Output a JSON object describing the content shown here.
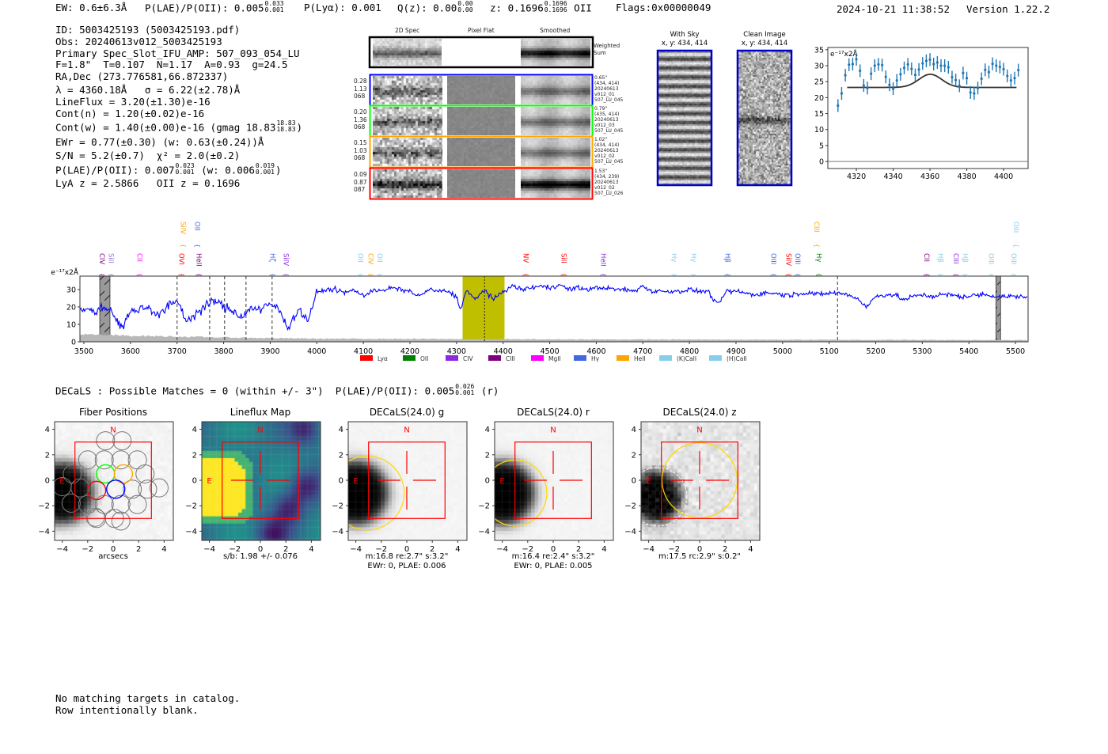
{
  "header": {
    "ew": "EW: 0.6±6.3Å",
    "plae": "P(LAE)/P(OII): 0.005",
    "plae_hi": "0.033",
    "plae_lo": "0.001",
    "plya": "P(Lyα): 0.001",
    "qz": "Q(z): 0.00",
    "qz_hi": "0.00",
    "qz_lo": "0.00",
    "z": "z: 0.1696",
    "z_hi": "0.1696",
    "z_lo": "0.1696",
    "z_line": "OII",
    "flags": "Flags:0x00000049",
    "datetime": "2024-10-21 11:38:52",
    "version": "Version 1.22.2"
  },
  "info": {
    "id": "ID: 5003425193 (5003425193.pdf)",
    "obs": "Obs: 20240613v012_5003425193",
    "primary": "Primary Spec_Slot_IFU_AMP: 507_093_054_LU",
    "params": "F=1.8\"  T=0.107  N=1.17  A=0.93  g=24.5",
    "radec": "RA,Dec (273.776581,66.872337)",
    "lambda": "λ = 4360.18Å   σ = 6.22(±2.78)Å",
    "lineflux": "LineFlux = 3.20(±1.30)e-16",
    "cont_n": "Cont(n) = 1.20(±0.02)e-16",
    "cont_w": "Cont(w) = 1.40(±0.00)e-16 (gmag 18.83",
    "cont_w_hi": "18.83",
    "cont_w_lo": "18.83",
    "cont_w_end": ")",
    "ewr": "EWr = 0.77(±0.30) (w: 0.63(±0.24))Å",
    "sn": "S/N = 5.2(±0.7)  χ² = 2.0(±0.2)",
    "plae": "P(LAE)/P(OII): 0.007",
    "plae_hi": "0.023",
    "plae_lo": "0.001",
    "plae_w": " (w: 0.006",
    "plae_w_hi": "0.019",
    "plae_w_lo": "0.001",
    "plae_w_end": ")",
    "z": "LyA z = 2.5866   OII z = 0.1696"
  },
  "spec2d": {
    "headers": [
      "2D Spec",
      "Pixel Flat",
      "Smoothed"
    ],
    "weighted_label": "Weighted\nSum",
    "rows": [
      {
        "color": "#0000ff",
        "left": "0.28\n1.13\n068",
        "right": "0.65\"\n(434, 414)\n20240613\nv012_01\n507_LU_045"
      },
      {
        "color": "#00ff00",
        "left": "0.20\n1.36\n068",
        "right": "0.79\"\n(435, 414)\n20240613\nv012_03\n507_LU_045"
      },
      {
        "color": "#ffa500",
        "left": "0.15\n1.03\n068",
        "right": "1.02\"\n(434, 414)\n20240613\nv012_02\n507_LU_045"
      },
      {
        "color": "#ff0000",
        "left": "0.09\n0.87\n087",
        "right": "1.53\"\n(434, 239)\n20240613\nv012_02\n507_LU_026"
      }
    ]
  },
  "stamps": {
    "with_sky": {
      "title": "With Sky",
      "coords": "x, y: 434, 414"
    },
    "clean": {
      "title": "Clean Image",
      "coords": "x, y: 434, 414"
    }
  },
  "colors": {
    "spectrum": "#0000ff",
    "fit_point": "#1f77b4",
    "highlight": "#bfbf00",
    "box": "#ff0000",
    "aperture": "#ffd700"
  },
  "chart_data": [
    {
      "type": "scatter",
      "name": "line-zoom",
      "ylabel_unit": "e⁻¹⁷x2Å",
      "xlim": [
        4304.5,
        4413.3
      ],
      "ylim": [
        -2.2,
        35.7
      ],
      "xticks": [
        4320,
        4340,
        4360,
        4380,
        4400
      ],
      "yticks": [
        0,
        5,
        10,
        15,
        20,
        25,
        30,
        35
      ],
      "x": [
        4310,
        4312,
        4314,
        4316,
        4318,
        4320,
        4322,
        4324,
        4326,
        4328,
        4330,
        4332,
        4334,
        4336,
        4338,
        4340,
        4342,
        4344,
        4346,
        4348,
        4350,
        4352,
        4354,
        4356,
        4358,
        4360,
        4362,
        4364,
        4366,
        4368,
        4370,
        4372,
        4374,
        4376,
        4378,
        4380,
        4382,
        4384,
        4386,
        4388,
        4390,
        4392,
        4394,
        4396,
        4398,
        4400,
        4402,
        4404,
        4406,
        4408
      ],
      "y": [
        17.5,
        21.3,
        27,
        30.3,
        30.5,
        32,
        28.4,
        23.8,
        23,
        27.5,
        30,
        30.4,
        30.2,
        26.5,
        24,
        22.8,
        25.4,
        27.3,
        29.3,
        30.4,
        29,
        27.1,
        28.8,
        30.7,
        31.5,
        31.9,
        30.5,
        31,
        30,
        30,
        29.5,
        26.4,
        25.5,
        23.7,
        27.7,
        26.1,
        21.6,
        21.3,
        23,
        25.9,
        28.7,
        28,
        30.6,
        30,
        29.6,
        28.9,
        26.8,
        25.4,
        26.1,
        28.6
      ],
      "yerr": 2.0,
      "fit": {
        "continuum": 23.2,
        "amplitude": 4.1,
        "center": 4360.18,
        "sigma": 6.22,
        "range": [
          4315,
          4407
        ]
      }
    },
    {
      "type": "line",
      "name": "full-spectrum",
      "ylabel_unit": "e⁻¹⁷x2Å",
      "xlim": [
        3491.5,
        5527
      ],
      "ylim": [
        0,
        37.7
      ],
      "xticks": [
        3500,
        3600,
        3700,
        3800,
        3900,
        4000,
        4100,
        4200,
        4300,
        4400,
        4500,
        4600,
        4700,
        4800,
        4900,
        5000,
        5100,
        5200,
        5300,
        5400,
        5500
      ],
      "yticks": [
        0,
        10,
        20,
        30
      ],
      "x": [
        3492,
        3500,
        3520,
        3540,
        3560,
        3580,
        3600,
        3620,
        3640,
        3660,
        3680,
        3700,
        3720,
        3740,
        3760,
        3780,
        3800,
        3820,
        3840,
        3860,
        3880,
        3900,
        3920,
        3940,
        3960,
        3980,
        4000,
        4020,
        4040,
        4060,
        4080,
        4100,
        4120,
        4140,
        4160,
        4180,
        4200,
        4220,
        4240,
        4260,
        4280,
        4300,
        4310,
        4320,
        4340,
        4360,
        4380,
        4400,
        4420,
        4440,
        4460,
        4480,
        4500,
        4520,
        4540,
        4560,
        4580,
        4600,
        4620,
        4640,
        4660,
        4680,
        4700,
        4720,
        4740,
        4760,
        4780,
        4800,
        4820,
        4840,
        4860,
        4880,
        4900,
        4920,
        4940,
        4960,
        4980,
        5000,
        5020,
        5040,
        5060,
        5080,
        5100,
        5120,
        5140,
        5160,
        5180,
        5200,
        5220,
        5240,
        5260,
        5280,
        5300,
        5320,
        5340,
        5360,
        5380,
        5400,
        5420,
        5440,
        5460,
        5480,
        5500,
        5527
      ],
      "y": [
        18,
        19,
        17,
        20,
        18,
        8,
        17,
        19,
        20,
        15,
        20,
        24,
        12,
        16,
        20,
        24,
        20,
        18,
        14,
        20,
        18,
        22,
        18,
        8,
        19,
        12,
        28,
        30,
        30,
        28,
        30,
        26,
        30,
        29,
        31,
        30,
        29,
        26,
        30,
        29,
        29,
        26,
        18,
        30,
        24,
        30,
        24,
        29,
        32,
        30,
        31,
        32,
        31,
        33,
        30,
        31,
        30,
        31,
        31,
        30,
        30,
        29,
        32,
        29,
        29,
        29,
        29,
        30,
        29,
        29,
        21,
        29,
        29,
        28,
        27,
        28,
        28,
        27,
        27,
        28,
        28,
        27,
        28,
        28,
        27,
        25,
        20,
        26,
        27,
        27,
        24,
        26,
        27,
        26,
        27,
        27,
        26,
        26,
        27,
        27,
        26,
        26,
        26,
        26
      ],
      "error": {
        "x": [
          3492,
          3600,
          3800,
          4000,
          4500,
          5000,
          5527
        ],
        "y": [
          4.2,
          3.5,
          2.5,
          1.8,
          1.4,
          1.2,
          1.0
        ]
      },
      "highlight_range": [
        4313,
        4403
      ],
      "center_line": 4360.18,
      "dashed_lines": [
        3700,
        3770,
        3802,
        3848,
        3904,
        5118
      ],
      "masked_ranges": [
        [
          3534,
          3556
        ],
        [
          5458,
          5468
        ]
      ],
      "line_labels": [
        {
          "label": "CIV",
          "w": 3540,
          "color": "#800080",
          "row": "low"
        },
        {
          "label": "SiII",
          "w": 3556,
          "color": "#9370db",
          "row": "low"
        },
        {
          "label": "CII",
          "w": 3621,
          "color": "#ff00ff",
          "row": "low"
        },
        {
          "label": "SiIV",
          "w": 3714,
          "color": "#ffa500",
          "row": "high"
        },
        {
          "label": "OII",
          "w": 3745,
          "color": "#4169e1",
          "row": "high"
        },
        {
          "label": "OVI",
          "w": 3711,
          "color": "#ff0000",
          "row": "low"
        },
        {
          "label": "HeII",
          "w": 3748,
          "color": "#800080",
          "row": "low"
        },
        {
          "label": "Hζ",
          "w": 3906,
          "color": "#4169e1",
          "row": "low"
        },
        {
          "label": "SiIV",
          "w": 3935,
          "color": "#8a2be2",
          "row": "low"
        },
        {
          "label": "OII",
          "w": 4095,
          "color": "#87ceeb",
          "row": "low"
        },
        {
          "label": "CIV",
          "w": 4117,
          "color": "#ffa500",
          "row": "low"
        },
        {
          "label": "OII",
          "w": 4132,
          "color": "#87ceeb",
          "row": "low"
        },
        {
          "label": "NV",
          "w": 4450,
          "color": "#ff0000",
          "row": "low"
        },
        {
          "label": "SiII",
          "w": 4531,
          "color": "#ff0000",
          "row": "low"
        },
        {
          "label": "HeII",
          "w": 4616,
          "color": "#8a2be2",
          "row": "low"
        },
        {
          "label": "Hγ",
          "w": 4768,
          "color": "#87ceeb",
          "row": "low"
        },
        {
          "label": "Hγ",
          "w": 4810,
          "color": "#87ceeb",
          "row": "low"
        },
        {
          "label": "Hβ",
          "w": 4883,
          "color": "#4169e1",
          "row": "low"
        },
        {
          "label": "OIII",
          "w": 4982,
          "color": "#4169e1",
          "row": "low"
        },
        {
          "label": "SiIV",
          "w": 5014,
          "color": "#ff0000",
          "row": "low"
        },
        {
          "label": "OIII",
          "w": 5031,
          "color": "#4169e1",
          "row": "low"
        },
        {
          "label": "CIII",
          "w": 5074,
          "color": "#ffa500",
          "row": "high"
        },
        {
          "label": "Hγ",
          "w": 5079,
          "color": "#008000",
          "row": "low"
        },
        {
          "label": "CII",
          "w": 5310,
          "color": "#800080",
          "row": "low"
        },
        {
          "label": "Hβ",
          "w": 5340,
          "color": "#87ceeb",
          "row": "low"
        },
        {
          "label": "CIII",
          "w": 5373,
          "color": "#8a2be2",
          "row": "low"
        },
        {
          "label": "Hβ",
          "w": 5390,
          "color": "#87ceeb",
          "row": "low"
        },
        {
          "label": "OIII",
          "w": 5449,
          "color": "#87ceeb",
          "row": "low"
        },
        {
          "label": "OIII",
          "w": 5497,
          "color": "#87ceeb",
          "row": "low"
        },
        {
          "label": "OIII",
          "w": 5502,
          "color": "#87ceeb",
          "row": "high"
        }
      ],
      "legend": [
        {
          "label": "Lyα",
          "color": "#ff0000"
        },
        {
          "label": "OII",
          "color": "#008000"
        },
        {
          "label": "CIV",
          "color": "#8a2be2"
        },
        {
          "label": "CIII",
          "color": "#800080"
        },
        {
          "label": "MgII",
          "color": "#ff00ff"
        },
        {
          "label": "Hγ",
          "color": "#4169e1"
        },
        {
          "label": "HeII",
          "color": "#ffa500"
        },
        {
          "label": "(K)CaII",
          "color": "#87ceeb"
        },
        {
          "label": "(H)CaII",
          "color": "#87ceeb"
        }
      ],
      "legend_position": "bottom-center"
    }
  ],
  "decals": {
    "summary": "DECaLS : Possible Matches = 0 (within +/- 3\")  P(LAE)/P(OII): 0.005",
    "summary_hi": "0.026",
    "summary_lo": "0.001",
    "summary_end": " (r)",
    "axis_ticks": [
      "-4",
      "-2",
      "0",
      "2",
      "4"
    ],
    "north": "N",
    "east": "E",
    "panels": [
      {
        "title": "Fiber Positions",
        "caption": "arcsecs"
      },
      {
        "title": "Lineflux Map",
        "caption": "s/b: 1.98 +/- 0.076"
      },
      {
        "title": "DECaLS(24.0) g",
        "caption": "m:16.8  re:2.7\"  s:3.2\"\nEWr: 0, PLAE: 0.006"
      },
      {
        "title": "DECaLS(24.0) r",
        "caption": "m:16.4  re:2.4\"  s:3.2\"\nEWr: 0, PLAE: 0.005"
      },
      {
        "title": "DECaLS(24.0) z",
        "caption": "m:17.5 rc:2.9\"  s:0.2\""
      }
    ]
  },
  "footer": {
    "line1": "No matching targets in catalog.",
    "line2": "Row intentionally blank."
  }
}
